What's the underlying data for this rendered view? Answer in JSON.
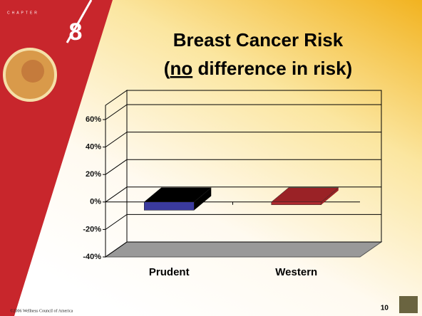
{
  "chapter": {
    "label": "CHAPTER",
    "number": "8"
  },
  "chart_data": {
    "type": "bar",
    "title": "Breast Cancer Risk",
    "subtitle": [
      "(",
      "no",
      " difference in risk)"
    ],
    "categories": [
      "Prudent",
      "Western"
    ],
    "values": [
      -6,
      -2
    ],
    "colors": [
      "#3a3a9e",
      "#b02a2e"
    ],
    "top_colors": [
      "#000000",
      "#9a2226"
    ],
    "ylim": [
      -40,
      60
    ],
    "yticks": [
      {
        "value": -40,
        "label": "-40%"
      },
      {
        "value": -20,
        "label": "-20%"
      },
      {
        "value": 0,
        "label": "0%"
      },
      {
        "value": 20,
        "label": "20%"
      },
      {
        "value": 40,
        "label": "40%"
      },
      {
        "value": 60,
        "label": "60%"
      }
    ],
    "grid": true
  },
  "footer": {
    "copyright": "©2006 Wellness Council of America",
    "page": "10"
  }
}
